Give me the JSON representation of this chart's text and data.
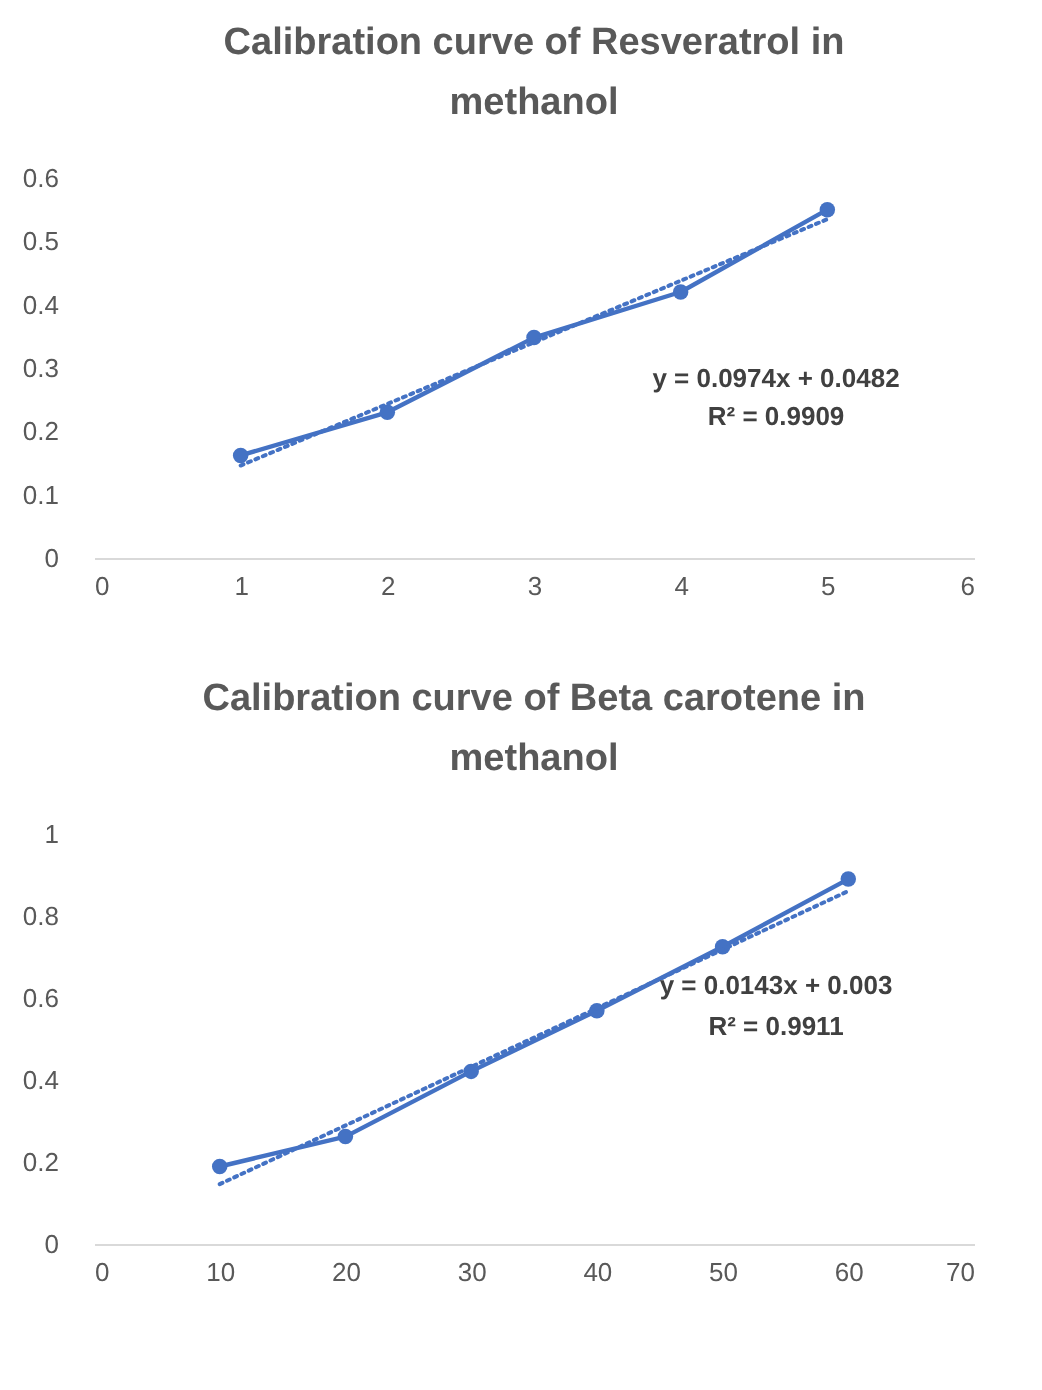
{
  "chart_data": [
    {
      "type": "line",
      "title": "Calibration curve of Resveratrol in methanol",
      "x": [
        1,
        2,
        3,
        4,
        5
      ],
      "series": [
        {
          "color": "#4472c4",
          "values": [
            0.162,
            0.23,
            0.348,
            0.42,
            0.55
          ],
          "marker": "circle",
          "line_style": "solid"
        },
        {
          "type": "line",
          "color": "#4472c4",
          "x": [
            1,
            5
          ],
          "values": [
            0.146,
            0.535
          ],
          "marker": "none",
          "line_style": "dotted"
        }
      ],
      "xlim": [
        0,
        6
      ],
      "xticks": [
        0,
        1,
        2,
        3,
        4,
        5,
        6
      ],
      "ylim": [
        0,
        0.6
      ],
      "yticks": [
        0,
        0.1,
        0.2,
        0.3,
        0.4,
        0.5,
        0.6
      ],
      "annotations": [
        "y = 0.0974x + 0.0482",
        "R² = 0.9909"
      ],
      "grid": false
    },
    {
      "type": "line",
      "title": "Calibration curve of Beta carotene in methanol",
      "x": [
        10,
        20,
        30,
        40,
        50,
        60
      ],
      "series": [
        {
          "color": "#4472c4",
          "values": [
            0.189,
            0.262,
            0.421,
            0.569,
            0.725,
            0.89
          ],
          "marker": "circle",
          "line_style": "solid"
        },
        {
          "type": "line",
          "color": "#4472c4",
          "x": [
            10,
            60
          ],
          "values": [
            0.146,
            0.861
          ],
          "marker": "none",
          "line_style": "dotted"
        }
      ],
      "xlim": [
        0,
        70
      ],
      "xticks": [
        0,
        10,
        20,
        30,
        40,
        50,
        60,
        70
      ],
      "ylim": [
        0,
        1
      ],
      "yticks": [
        0,
        0.2,
        0.4,
        0.6,
        0.8,
        1
      ],
      "annotations": [
        "y = 0.0143x + 0.003",
        "R² = 0.9911"
      ],
      "grid": false
    }
  ]
}
